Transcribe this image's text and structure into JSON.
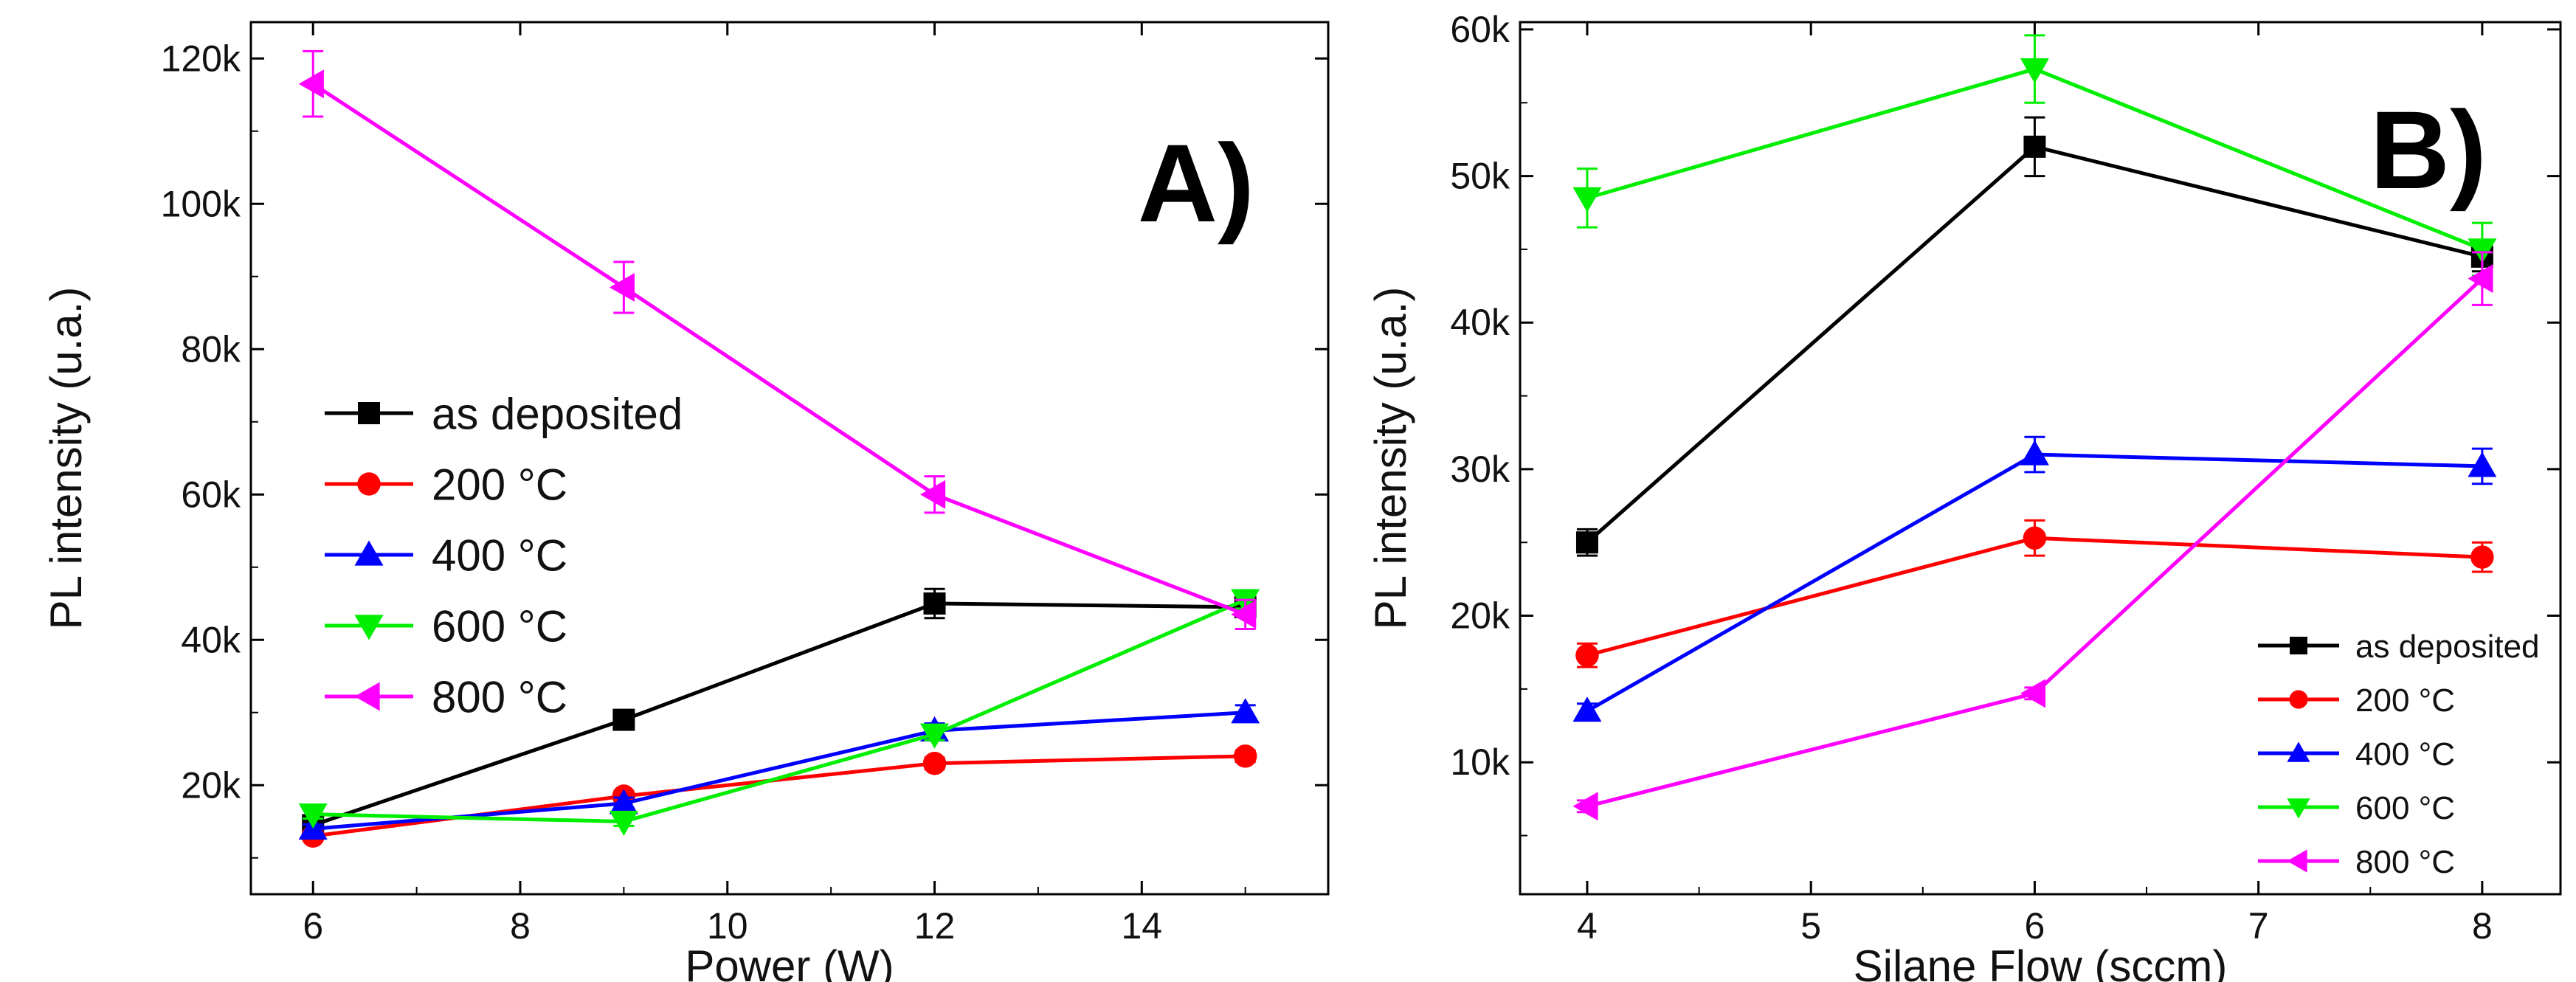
{
  "chart_data": [
    {
      "type": "line",
      "panel_label": "A)",
      "xlabel": "Power (W)",
      "ylabel": "PL intensity (u.a.)",
      "xlim": [
        5.4,
        15.8
      ],
      "ylim": [
        5000,
        125000
      ],
      "xticks": [
        6,
        8,
        10,
        12,
        14
      ],
      "xtick_labels": [
        "6",
        "8",
        "10",
        "12",
        "14"
      ],
      "yticks": [
        20000,
        40000,
        60000,
        80000,
        100000,
        120000
      ],
      "ytick_labels": [
        "20k",
        "40k",
        "60k",
        "80k",
        "100k",
        "120k"
      ],
      "grid": false,
      "legend_position": "middle-left",
      "x": [
        6,
        9,
        12,
        15
      ],
      "series": [
        {
          "name": "as deposited",
          "color": "#000000",
          "marker": "square",
          "values": [
            14500,
            29000,
            45000,
            44500
          ],
          "errors": [
            800,
            1000,
            2000,
            1000
          ]
        },
        {
          "name": "200 °C",
          "color": "#ff0000",
          "marker": "circle",
          "values": [
            13000,
            18500,
            23000,
            24000
          ],
          "errors": [
            600,
            700,
            800,
            800
          ]
        },
        {
          "name": "400 °C",
          "color": "#0000ff",
          "marker": "triangle-up",
          "values": [
            14000,
            17500,
            27500,
            30000
          ],
          "errors": [
            600,
            800,
            1000,
            1000
          ]
        },
        {
          "name": "600 °C",
          "color": "#00ee00",
          "marker": "triangle-down",
          "values": [
            16000,
            15000,
            27000,
            45500
          ],
          "errors": [
            600,
            600,
            800,
            1200
          ]
        },
        {
          "name": "800 °C",
          "color": "#ff00ff",
          "marker": "triangle-left",
          "values": [
            116500,
            88500,
            60000,
            43500
          ],
          "errors": [
            4500,
            3500,
            2500,
            2000
          ]
        }
      ]
    },
    {
      "type": "line",
      "panel_label": "B)",
      "xlabel": "Silane Flow (sccm)",
      "ylabel": "PL intensity (u.a.)",
      "xlim": [
        3.7,
        8.35
      ],
      "ylim": [
        1000,
        60500
      ],
      "xticks": [
        4,
        5,
        6,
        7,
        8
      ],
      "xtick_labels": [
        "4",
        "5",
        "6",
        "7",
        "8"
      ],
      "yticks": [
        10000,
        20000,
        30000,
        40000,
        50000,
        60000
      ],
      "ytick_labels": [
        "10k",
        "20k",
        "30k",
        "40k",
        "50k",
        "60k"
      ],
      "grid": false,
      "legend_position": "bottom-right",
      "x": [
        4,
        6,
        8
      ],
      "series": [
        {
          "name": "as deposited",
          "color": "#000000",
          "marker": "square",
          "values": [
            25000,
            52000,
            44500
          ],
          "errors": [
            900,
            2000,
            1000
          ]
        },
        {
          "name": "200 °C",
          "color": "#ff0000",
          "marker": "circle",
          "values": [
            17300,
            25300,
            24000
          ],
          "errors": [
            800,
            1200,
            1000
          ]
        },
        {
          "name": "400 °C",
          "color": "#0000ff",
          "marker": "triangle-up",
          "values": [
            13500,
            31000,
            30200
          ],
          "errors": [
            500,
            1200,
            1200
          ]
        },
        {
          "name": "600 °C",
          "color": "#00ee00",
          "marker": "triangle-down",
          "values": [
            48500,
            57300,
            45000
          ],
          "errors": [
            2000,
            2300,
            1800
          ]
        },
        {
          "name": "800 °C",
          "color": "#ff00ff",
          "marker": "triangle-left",
          "values": [
            7000,
            14700,
            43000
          ],
          "errors": [
            400,
            400,
            1800
          ]
        }
      ]
    }
  ]
}
